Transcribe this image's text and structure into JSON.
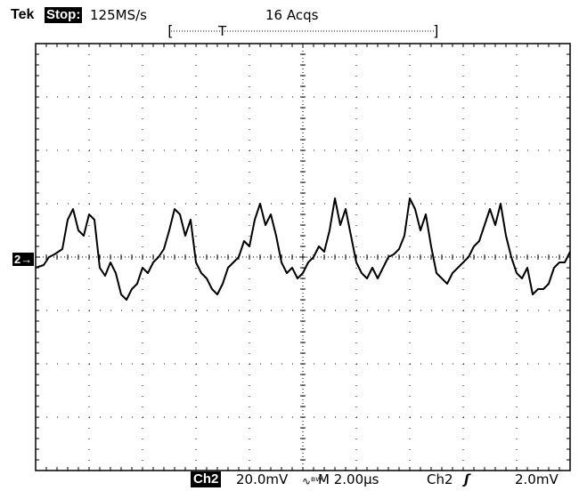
{
  "header": {
    "brand": "Tek",
    "state": "Stop:",
    "sample_rate": "125MS/s",
    "acquisitions": "16 Acqs"
  },
  "record_bar": {
    "left_bracket": "[",
    "trigger_marker": "T",
    "right_bracket": "]"
  },
  "channel_marker": "2→",
  "footer": {
    "channel": "Ch2",
    "volts_per_div": "20.0mV",
    "coupling_symbol": "∿ᴮᵂ",
    "timebase": "M 2.00µs",
    "trigger_source": "Ch2",
    "trigger_slope": "ʃ",
    "trigger_level": "2.0mV"
  },
  "colors": {
    "background": "#ffffff",
    "trace": "#000000",
    "grid": "#000000"
  },
  "chart_data": {
    "type": "line",
    "grid": true,
    "x_unit": "µs",
    "y_unit": "mV",
    "xlim": [
      -10,
      10
    ],
    "ylim": [
      -80,
      80
    ],
    "x_divisions": 10,
    "y_divisions": 8,
    "series": [
      {
        "x": [
          -10.0,
          -9.7,
          -9.5,
          -9.3,
          -9.0,
          -8.8,
          -8.6,
          -8.4,
          -8.2,
          -8.0,
          -7.8,
          -7.6,
          -7.4,
          -7.2,
          -7.0,
          -6.8,
          -6.6,
          -6.4,
          -6.2,
          -6.0,
          -5.8,
          -5.6,
          -5.4,
          -5.2,
          -5.0,
          -4.8,
          -4.6,
          -4.4,
          -4.2,
          -4.0,
          -3.8,
          -3.6,
          -3.4,
          -3.2,
          -3.0,
          -2.8,
          -2.6,
          -2.4,
          -2.2,
          -2.0,
          -1.8,
          -1.6,
          -1.4,
          -1.2,
          -1.0,
          -0.8,
          -0.6,
          -0.4,
          -0.2,
          0.0,
          0.2,
          0.4,
          0.6,
          0.8,
          1.0,
          1.2,
          1.4,
          1.6,
          1.8,
          2.0,
          2.2,
          2.4,
          2.6,
          2.8,
          3.0,
          3.2,
          3.4,
          3.6,
          3.8,
          4.0,
          4.2,
          4.4,
          4.6,
          4.8,
          5.0,
          5.2,
          5.4,
          5.6,
          5.8,
          6.0,
          6.2,
          6.4,
          6.6,
          6.8,
          7.0,
          7.2,
          7.4,
          7.6,
          7.8,
          8.0,
          8.2,
          8.4,
          8.6,
          8.8,
          9.0,
          9.2,
          9.4,
          9.6,
          9.8,
          10.0
        ],
        "y": [
          -4,
          -3,
          0,
          1,
          3,
          14,
          18,
          10,
          8,
          16,
          14,
          -4,
          -7,
          -2,
          -6,
          -14,
          -16,
          -12,
          -10,
          -4,
          -6,
          -2,
          0,
          3,
          10,
          18,
          16,
          8,
          14,
          -2,
          -6,
          -8,
          -12,
          -14,
          -10,
          -4,
          -2,
          0,
          6,
          4,
          14,
          20,
          12,
          16,
          8,
          -2,
          -6,
          -4,
          -8,
          -6,
          -2,
          0,
          4,
          2,
          10,
          22,
          12,
          18,
          8,
          -2,
          -6,
          -8,
          -4,
          -8,
          -4,
          0,
          1,
          3,
          8,
          22,
          18,
          10,
          16,
          4,
          -6,
          -8,
          -10,
          -6,
          -4,
          -2,
          0,
          4,
          6,
          12,
          18,
          12,
          20,
          8,
          0,
          -6,
          -8,
          -4,
          -14,
          -12,
          -12,
          -10,
          -4,
          -2,
          -2,
          2
        ]
      }
    ]
  }
}
